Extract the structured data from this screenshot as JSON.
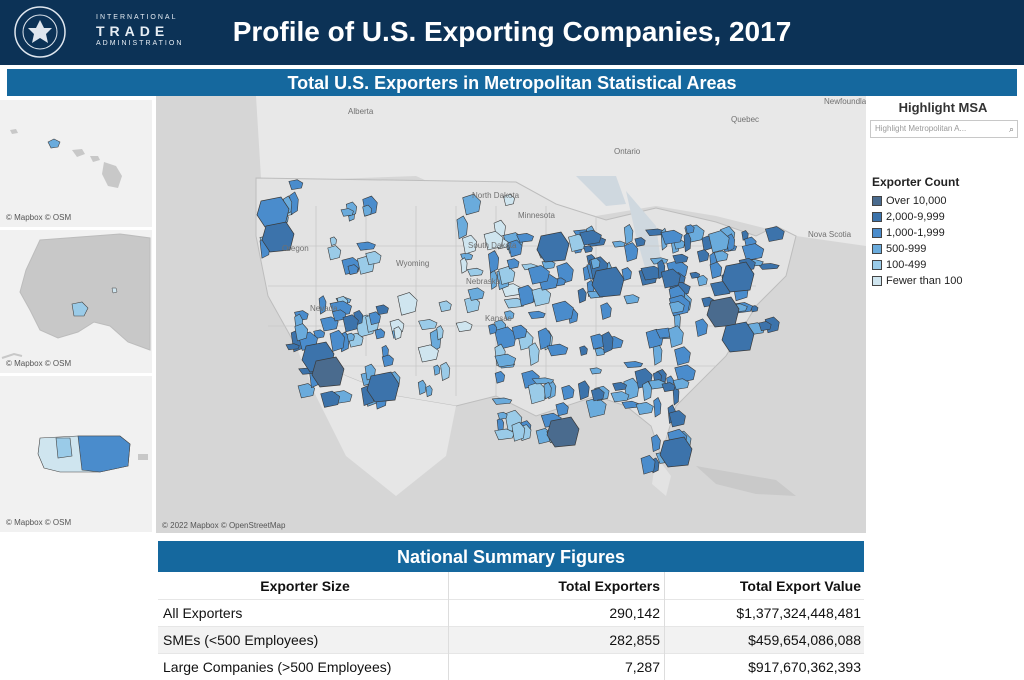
{
  "header": {
    "title": "Profile of U.S. Exporting Companies, 2017",
    "logo": {
      "seal_text": "DEPARTMENT OF COMMERCE · UNITED STATES OF AMERICA",
      "line1": "INTERNATIONAL",
      "line2": "TRADE",
      "line3": "ADMINISTRATION"
    }
  },
  "map_section": {
    "title": "Total U.S. Exporters in Metropolitan Statistical Areas",
    "map_credit": "© 2022 Mapbox © OpenStreetMap",
    "inset_credit": "© Mapbox © OSM",
    "map_labels": [
      "Alberta",
      "Quebec",
      "Ontario",
      "North Dakota",
      "South Dakota",
      "Minnesota",
      "Nebraska",
      "Kansas",
      "Oregon",
      "Nevada",
      "Wyoming",
      "Newfoundland and Labrador",
      "Nova Scotia"
    ]
  },
  "highlight": {
    "title": "Highlight MSA",
    "placeholder": "Highlight Metropolitan A..."
  },
  "legend": {
    "title": "Exporter Count",
    "items": [
      {
        "label": "Over 10,000",
        "color": "#4a6b8e"
      },
      {
        "label": "2,000-9,999",
        "color": "#3c73ab"
      },
      {
        "label": "1,000-1,999",
        "color": "#4a8ccc"
      },
      {
        "label": "500-999",
        "color": "#6aabdc"
      },
      {
        "label": "100-499",
        "color": "#9acbe8"
      },
      {
        "label": "Fewer than 100",
        "color": "#cfe5ef"
      }
    ]
  },
  "summary": {
    "title": "National Summary Figures",
    "columns": [
      "Exporter Size",
      "Total Exporters",
      "Total Export Value"
    ],
    "rows": [
      [
        "All Exporters",
        "290,142",
        "$1,377,324,448,481"
      ],
      [
        "SMEs (<500 Employees)",
        "282,855",
        "$459,654,086,088"
      ],
      [
        "Large Companies (>500 Employees)",
        "7,287",
        "$917,670,362,393"
      ]
    ]
  }
}
